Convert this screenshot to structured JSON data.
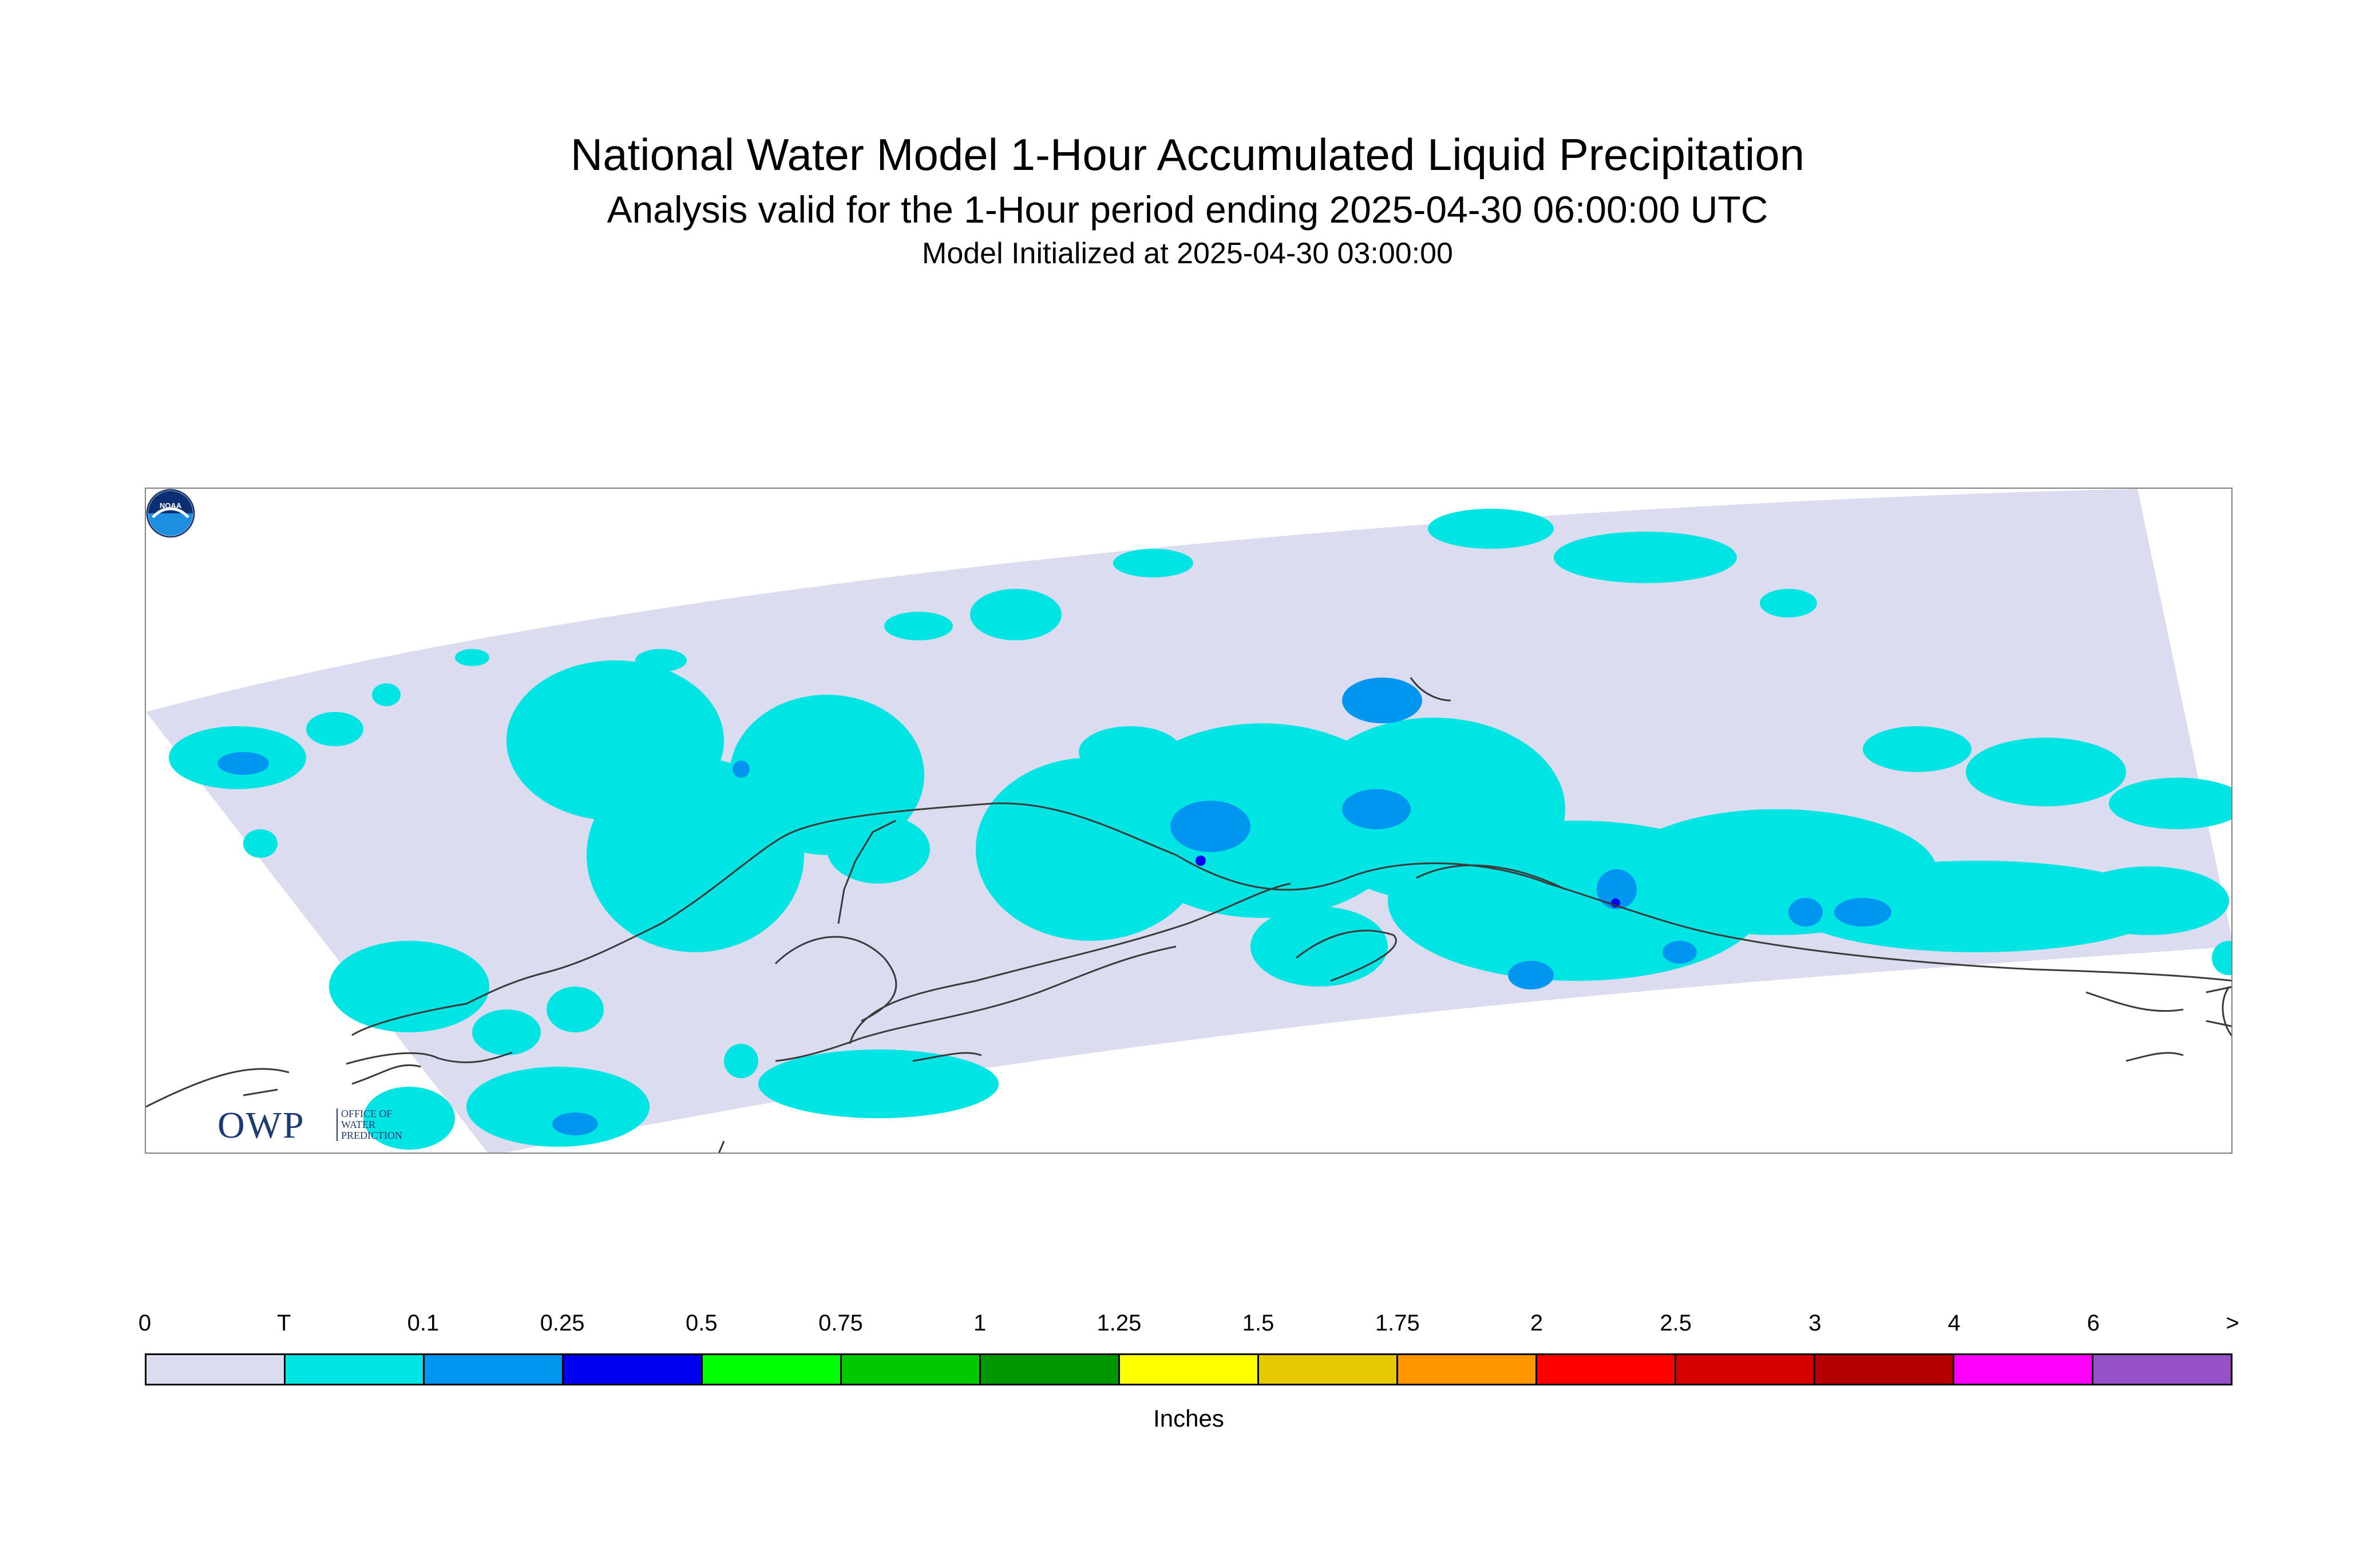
{
  "header": {
    "title": "National Water Model 1-Hour Accumulated Liquid Precipitation",
    "subtitle": "Analysis valid for the 1-Hour period ending 2025-04-30 06:00:00 UTC",
    "init_line": "Model Initialized at 2025-04-30 03:00:00"
  },
  "logos": {
    "owp_main": "OWP",
    "owp_sub_1": "OFFICE OF",
    "owp_sub_2": "WATER",
    "owp_sub_3": "PREDICTION",
    "noaa": "NOAA"
  },
  "colors": {
    "domain_bg": "#dcdcf0",
    "trace": "#00e4e4",
    "light_blue": "#0096f0",
    "coastline": "#3a3a3a"
  },
  "legend": {
    "ticks": [
      "0",
      "T",
      "0.1",
      "0.25",
      "0.5",
      "0.75",
      "1",
      "1.25",
      "1.5",
      "1.75",
      "2",
      "2.5",
      "3",
      "4",
      "6",
      ">"
    ],
    "colors": [
      "#dcdcf0",
      "#00e4e4",
      "#0096f0",
      "#0000f0",
      "#00ff00",
      "#00c800",
      "#009600",
      "#ffff00",
      "#e6c800",
      "#ff9600",
      "#ff0000",
      "#d70000",
      "#b40000",
      "#ff00ff",
      "#9650c8"
    ],
    "units": "Inches"
  }
}
